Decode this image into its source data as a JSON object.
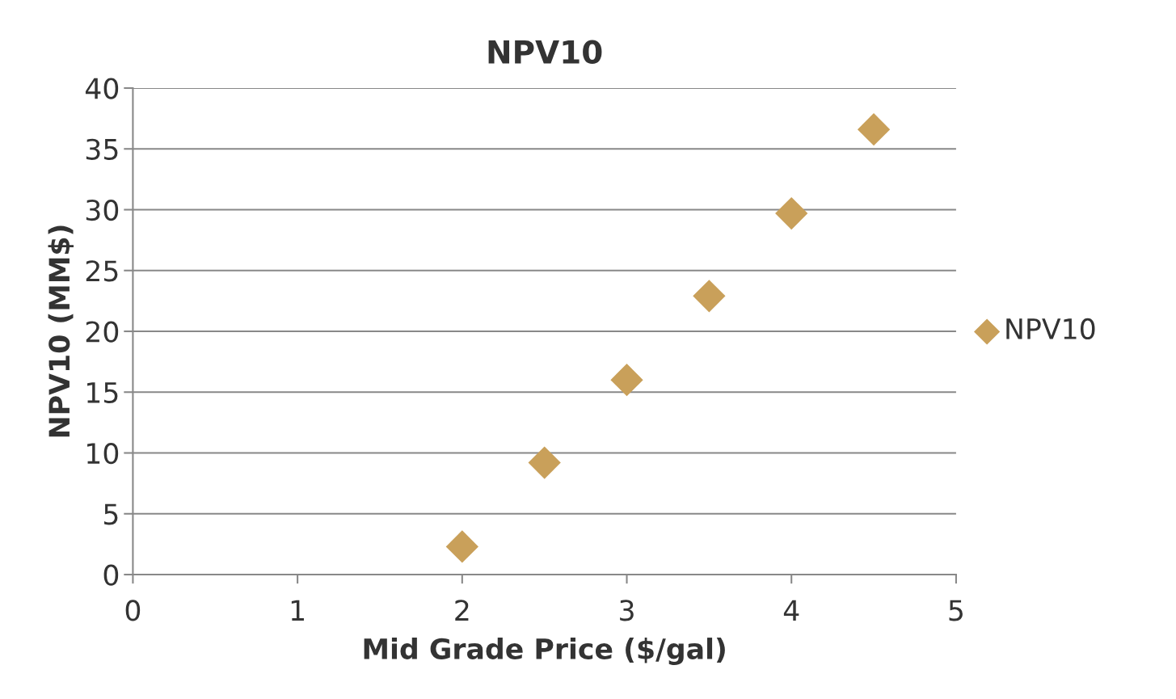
{
  "chart_data": {
    "type": "scatter",
    "title": "NPV10",
    "xlabel": "Mid Grade Price ($/gal)",
    "ylabel": "NPV10 (MM$)",
    "x": [
      2,
      2.5,
      3,
      3.5,
      4,
      4.5
    ],
    "series": [
      {
        "name": "NPV10",
        "color": "#c9a05a",
        "values": [
          2.3,
          9.2,
          16.0,
          22.9,
          29.7,
          36.6
        ]
      }
    ],
    "xlim": [
      0,
      5
    ],
    "xticks": [
      0,
      1,
      2,
      3,
      4,
      5
    ],
    "ylim": [
      0,
      40
    ],
    "yticks": [
      0,
      5,
      10,
      15,
      20,
      25,
      30,
      35,
      40
    ],
    "grid": "y",
    "legend": "right",
    "marker": "diamond"
  }
}
